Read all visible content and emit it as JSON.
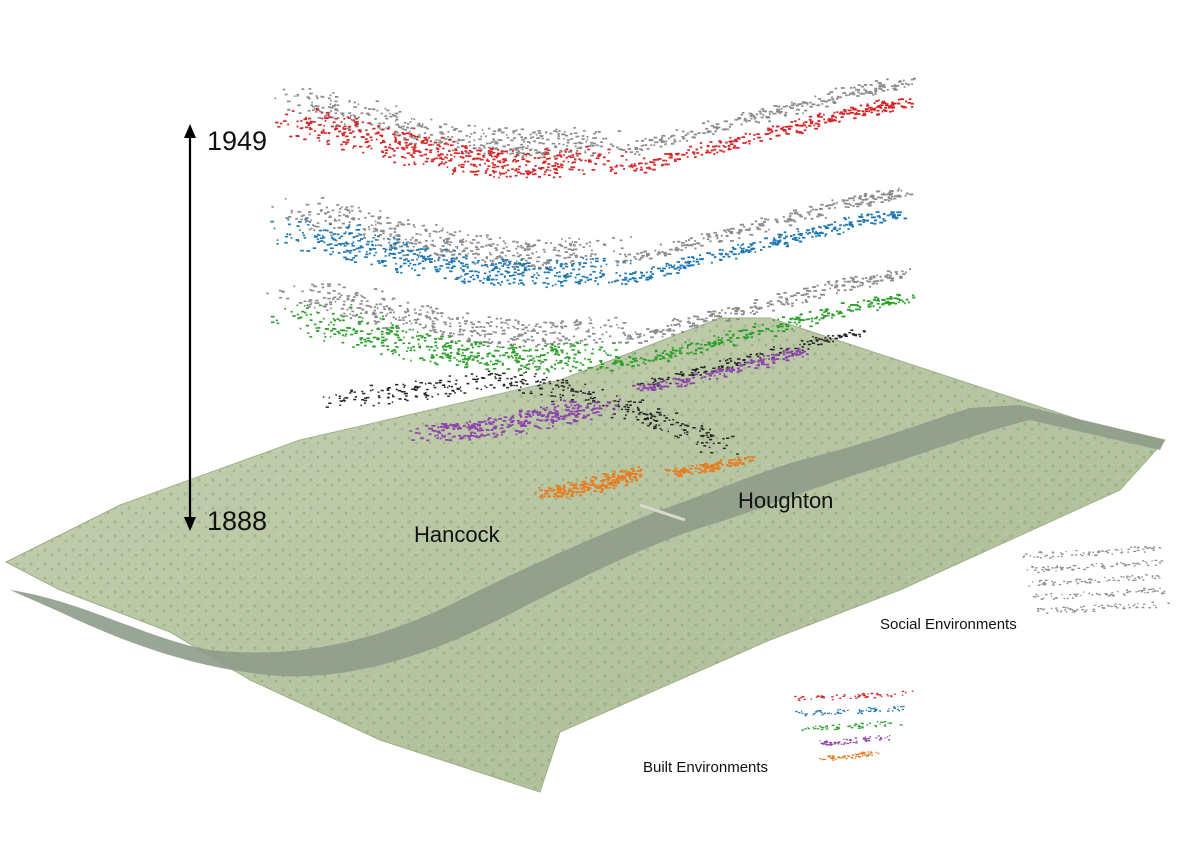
{
  "timeline": {
    "end_year": "1949",
    "start_year": "1888"
  },
  "places": {
    "hancock": "Hancock",
    "houghton": "Houghton"
  },
  "legend": {
    "social": "Social Environments",
    "built": "Built Environments"
  },
  "colors": {
    "layer_1949": "#d62728",
    "layer_grey": "#8c8c8c",
    "layer_blue": "#1f77b4",
    "layer_green": "#2ca02c",
    "layer_purple": "#8e44ad",
    "layer_orange": "#e67e22",
    "layer_black": "#222222",
    "river": "#8c9888",
    "terrain": "#b9c9a8"
  }
}
